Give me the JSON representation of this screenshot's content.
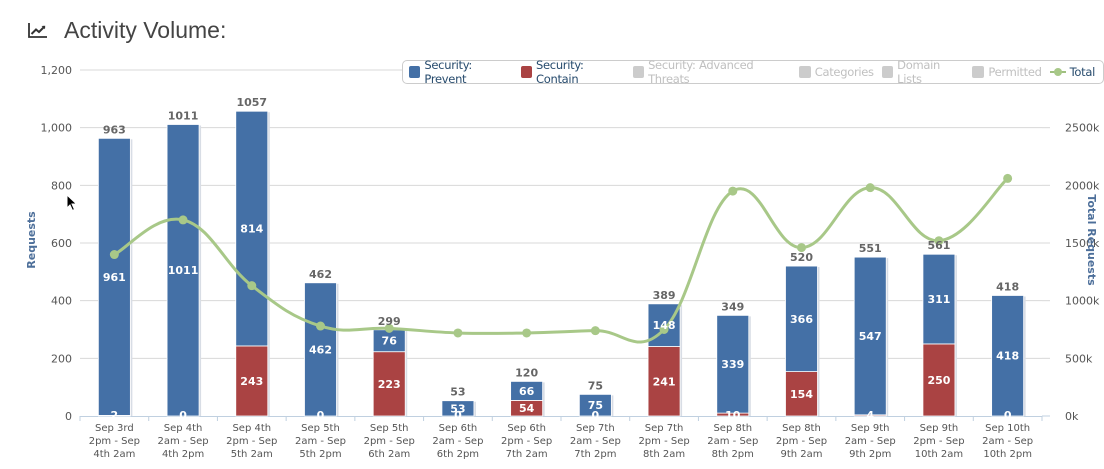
{
  "header": {
    "title": "Activity Volume:",
    "icon": "line-chart-icon"
  },
  "legend": [
    {
      "label": "Security: Prevent",
      "color": "#4470a6",
      "active": true,
      "type": "bar"
    },
    {
      "label": "Security: Contain",
      "color": "#aa4343",
      "active": true,
      "type": "bar"
    },
    {
      "label": "Security: Advanced Threats",
      "color": "#cccccc",
      "active": false,
      "type": "bar"
    },
    {
      "label": "Categories",
      "color": "#cccccc",
      "active": false,
      "type": "bar"
    },
    {
      "label": "Domain Lists",
      "color": "#cccccc",
      "active": false,
      "type": "bar"
    },
    {
      "label": "Permitted",
      "color": "#cccccc",
      "active": false,
      "type": "bar"
    },
    {
      "label": "Total",
      "color": "#a8c888",
      "active": true,
      "type": "line"
    }
  ],
  "chart_data": {
    "type": "bar",
    "title": "Activity Volume:",
    "stacked": true,
    "categories": [
      "Sep 3rd 2pm - Sep 4th 2am",
      "Sep 4th 2am - Sep 4th 2pm",
      "Sep 4th 2pm - Sep 5th 2am",
      "Sep 5th 2am - Sep 5th 2pm",
      "Sep 5th 2pm - Sep 6th 2am",
      "Sep 6th 2am - Sep 6th 2pm",
      "Sep 6th 2pm - Sep 7th 2am",
      "Sep 7th 2am - Sep 7th 2pm",
      "Sep 7th 2pm - Sep 8th 2am",
      "Sep 8th 2am - Sep 8th 2pm",
      "Sep 8th 2pm - Sep 9th 2am",
      "Sep 9th 2am - Sep 9th 2pm",
      "Sep 9th 2pm - Sep 10th 2am",
      "Sep 10th 2am - Sep 10th 2pm"
    ],
    "category_lines": [
      [
        "Sep 3rd",
        "2pm - Sep",
        "4th 2am"
      ],
      [
        "Sep 4th",
        "2am - Sep",
        "4th 2pm"
      ],
      [
        "Sep 4th",
        "2pm - Sep",
        "5th 2am"
      ],
      [
        "Sep 5th",
        "2am - Sep",
        "5th 2pm"
      ],
      [
        "Sep 5th",
        "2pm - Sep",
        "6th 2am"
      ],
      [
        "Sep 6th",
        "2am - Sep",
        "6th 2pm"
      ],
      [
        "Sep 6th",
        "2pm - Sep",
        "7th 2am"
      ],
      [
        "Sep 7th",
        "2am - Sep",
        "7th 2pm"
      ],
      [
        "Sep 7th",
        "2pm - Sep",
        "8th 2am"
      ],
      [
        "Sep 8th",
        "2am - Sep",
        "8th 2pm"
      ],
      [
        "Sep 8th",
        "2pm - Sep",
        "9th 2am"
      ],
      [
        "Sep 9th",
        "2am - Sep",
        "9th 2pm"
      ],
      [
        "Sep 9th",
        "2pm - Sep",
        "10th 2am"
      ],
      [
        "Sep 10th",
        "2am - Sep",
        "10th 2pm"
      ]
    ],
    "series": [
      {
        "name": "Security: Prevent",
        "type": "bar",
        "axis": "left",
        "color": "#4470a6",
        "values": [
          961,
          1011,
          814,
          462,
          76,
          53,
          66,
          75,
          148,
          339,
          366,
          547,
          311,
          418
        ]
      },
      {
        "name": "Security: Contain",
        "type": "bar",
        "axis": "left",
        "color": "#aa4343",
        "values": [
          2,
          0,
          243,
          0,
          223,
          0,
          54,
          0,
          241,
          10,
          154,
          4,
          250,
          0
        ]
      },
      {
        "name": "Total",
        "type": "line",
        "axis": "right",
        "color": "#a8c888",
        "values": [
          1400,
          1700,
          1130,
          780,
          760,
          720,
          720,
          740,
          750,
          1950,
          1460,
          1980,
          1520,
          2060
        ]
      }
    ],
    "stack_totals": [
      963,
      1011,
      1057,
      462,
      299,
      53,
      120,
      75,
      389,
      349,
      520,
      551,
      561,
      418
    ],
    "ylabel": "Requests",
    "ylim": [
      0,
      1200
    ],
    "yticks": [
      0,
      200,
      400,
      600,
      800,
      1000,
      1200
    ],
    "ytick_labels": [
      "0",
      "200",
      "400",
      "600",
      "800",
      "1,000",
      "1,200"
    ],
    "y2label": "Total Requests",
    "y2lim": [
      0,
      3000
    ],
    "y2ticks": [
      0,
      500,
      1000,
      1500,
      2000,
      2500
    ],
    "y2tick_labels": [
      "0k",
      "500k",
      "1000k",
      "1500k",
      "2000k",
      "2500k"
    ],
    "y2unit": "k",
    "grid": true,
    "legend_position": "top-right"
  }
}
